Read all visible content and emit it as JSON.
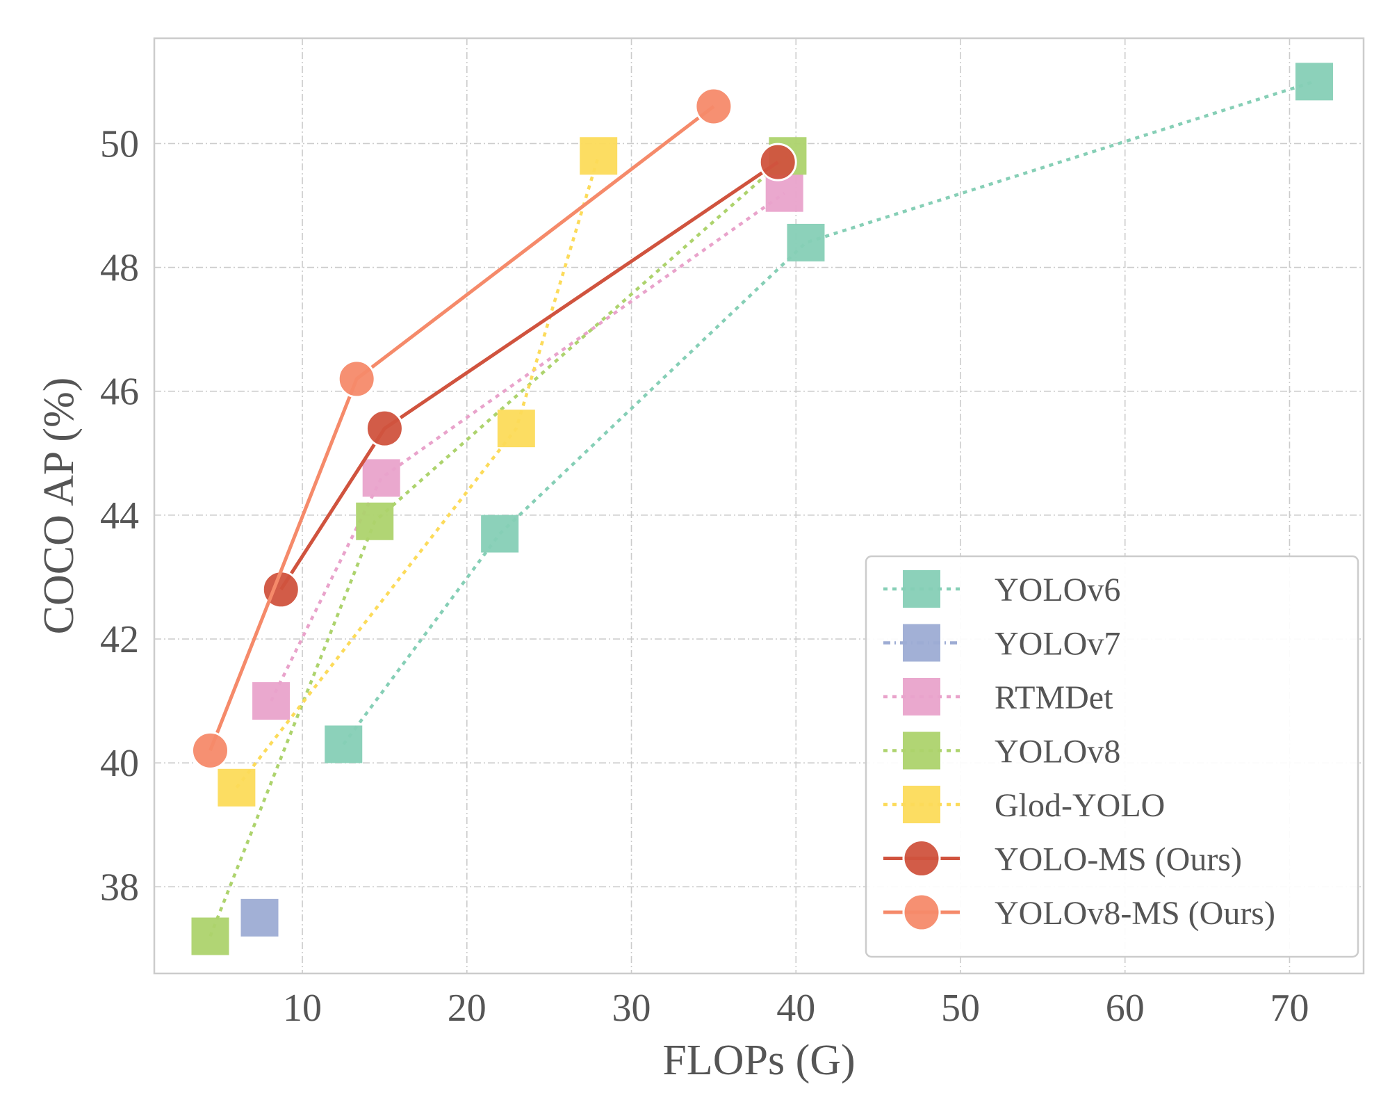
{
  "chart_data": {
    "type": "scatter",
    "xlabel": "FLOPs (G)",
    "ylabel": "COCO AP (%)",
    "xlim": [
      1,
      74.5
    ],
    "ylim": [
      36.6,
      51.7
    ],
    "xticks": [
      10,
      20,
      30,
      40,
      50,
      60,
      70
    ],
    "yticks": [
      38,
      40,
      42,
      44,
      46,
      48,
      50
    ],
    "grid": true,
    "legend_position": "lower-right",
    "series": [
      {
        "name": "YOLOv6",
        "color": "#86cfb6",
        "marker": "square",
        "line": "dotted",
        "points": [
          {
            "x": 12.5,
            "y": 40.3
          },
          {
            "x": 22.0,
            "y": 43.7
          },
          {
            "x": 40.6,
            "y": 48.4
          },
          {
            "x": 71.5,
            "y": 51.0
          }
        ]
      },
      {
        "name": "YOLOv7",
        "color": "#9dacd4",
        "marker": "square",
        "line": "dashdot",
        "points": [
          {
            "x": 7.4,
            "y": 37.5
          }
        ]
      },
      {
        "name": "RTMDet",
        "color": "#e9a3cb",
        "marker": "square",
        "line": "dotted",
        "points": [
          {
            "x": 8.1,
            "y": 41.0
          },
          {
            "x": 14.8,
            "y": 44.6
          },
          {
            "x": 39.3,
            "y": 49.2
          }
        ]
      },
      {
        "name": "YOLOv8",
        "color": "#add36d",
        "marker": "square",
        "line": "dotted",
        "points": [
          {
            "x": 4.4,
            "y": 37.2
          },
          {
            "x": 14.4,
            "y": 43.9
          },
          {
            "x": 39.5,
            "y": 49.8
          }
        ]
      },
      {
        "name": "Glod-YOLO",
        "color": "#fcdb5a",
        "marker": "square",
        "line": "dotted",
        "points": [
          {
            "x": 6.0,
            "y": 39.6
          },
          {
            "x": 23.0,
            "y": 45.4
          },
          {
            "x": 28.0,
            "y": 49.8
          }
        ]
      },
      {
        "name": "YOLO-MS (Ours)",
        "color": "#d0533e",
        "marker": "circle",
        "line": "solid",
        "points": [
          {
            "x": 8.7,
            "y": 42.8
          },
          {
            "x": 15.0,
            "y": 45.4
          },
          {
            "x": 38.9,
            "y": 49.7
          }
        ]
      },
      {
        "name": "YOLOv8-MS (Ours)",
        "color": "#f58a6a",
        "marker": "circle",
        "line": "solid",
        "points": [
          {
            "x": 4.4,
            "y": 40.2
          },
          {
            "x": 13.3,
            "y": 46.2
          },
          {
            "x": 35.0,
            "y": 50.6
          }
        ]
      }
    ]
  }
}
